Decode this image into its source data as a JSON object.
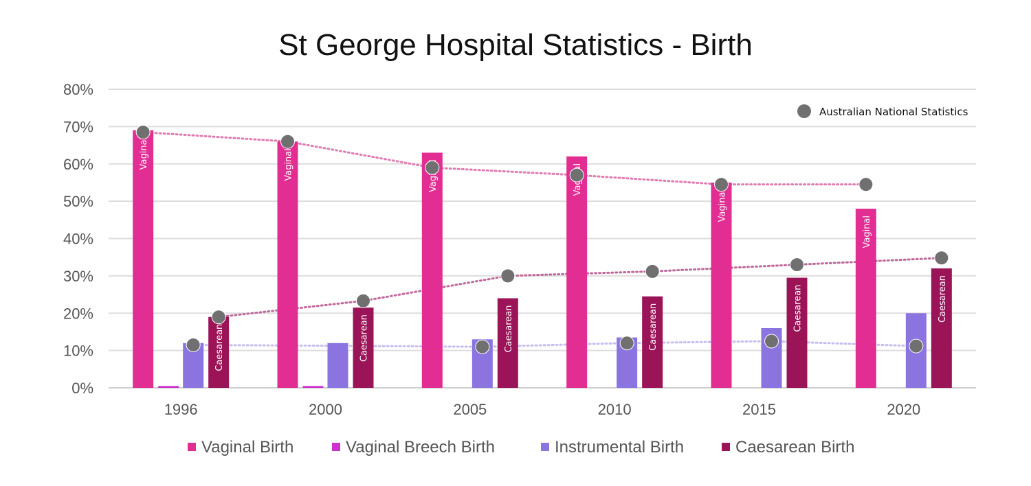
{
  "chart_data": {
    "type": "bar",
    "title": "St George Hospital Statistics - Birth",
    "xlabel": "",
    "ylabel": "",
    "ylim": [
      0,
      80
    ],
    "y_ticks": [
      "0%",
      "10%",
      "20%",
      "30%",
      "40%",
      "50%",
      "60%",
      "70%",
      "80%"
    ],
    "categories": [
      "1996",
      "2000",
      "2005",
      "2010",
      "2015",
      "2020"
    ],
    "series": [
      {
        "name": "Vaginal Birth",
        "color": "#E22D93",
        "values": [
          69,
          66,
          63,
          62,
          55,
          48
        ],
        "bar_label": "Vaginal"
      },
      {
        "name": "Vaginal Breech Birth",
        "color": "#CC33CC",
        "values": [
          0.5,
          0.5,
          0,
          0,
          0,
          0
        ],
        "bar_label": ""
      },
      {
        "name": "Instrumental Birth",
        "color": "#8B74E0",
        "values": [
          12,
          12,
          13,
          13.5,
          16,
          20
        ],
        "bar_label": ""
      },
      {
        "name": "Caesarean Birth",
        "color": "#9B1458",
        "values": [
          19,
          21.5,
          24,
          24.5,
          29.5,
          32
        ],
        "bar_label": "Caesarean"
      }
    ],
    "national_statistics": {
      "name": "Australian National Statistics",
      "marker_color": "#707070",
      "series": [
        {
          "name": "Vaginal Birth",
          "line_color": "#E07BB0",
          "values": [
            68.5,
            66,
            59,
            57,
            54.5,
            54.5
          ]
        },
        {
          "name": "Instrumental Birth",
          "line_color": "#C7BDF0",
          "values": [
            11.5,
            null,
            11,
            12,
            12.5,
            11.2
          ]
        },
        {
          "name": "Caesarean Birth",
          "line_color": "#C0679A",
          "values": [
            19,
            23.3,
            30,
            31.2,
            33,
            34.8
          ]
        }
      ]
    },
    "legend_position": "bottom",
    "grid": true
  }
}
